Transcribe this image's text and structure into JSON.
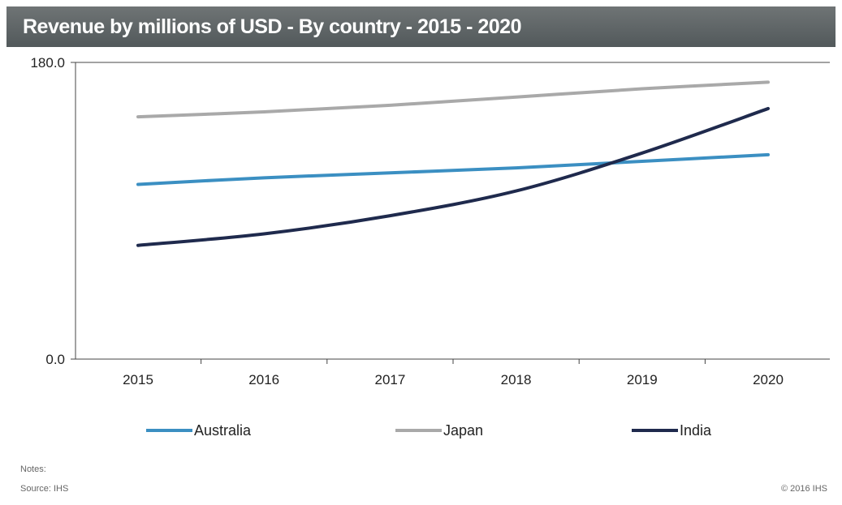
{
  "chart_data": {
    "type": "line",
    "title": "Revenue by millions of USD - By country - 2015 - 2020",
    "xlabel": "",
    "ylabel": "",
    "x": [
      "2015",
      "2016",
      "2017",
      "2018",
      "2019",
      "2020"
    ],
    "ylim": [
      0,
      180
    ],
    "y_tick_labels": [
      "180.0",
      "0.0"
    ],
    "grid": false,
    "legend_position": "bottom",
    "series": [
      {
        "name": "Australia",
        "color": "#3b8fc2",
        "values": [
          106,
          110,
          113,
          116,
          120,
          124
        ]
      },
      {
        "name": "Japan",
        "color": "#a9a9a9",
        "values": [
          147,
          150,
          154,
          159,
          164,
          168
        ]
      },
      {
        "name": "India",
        "color": "#1f2a4d",
        "values": [
          69,
          76,
          87,
          102,
          125,
          152
        ]
      }
    ]
  },
  "footer": {
    "notes": "Notes:",
    "source": "Source: IHS",
    "copyright": "© 2016 IHS"
  }
}
